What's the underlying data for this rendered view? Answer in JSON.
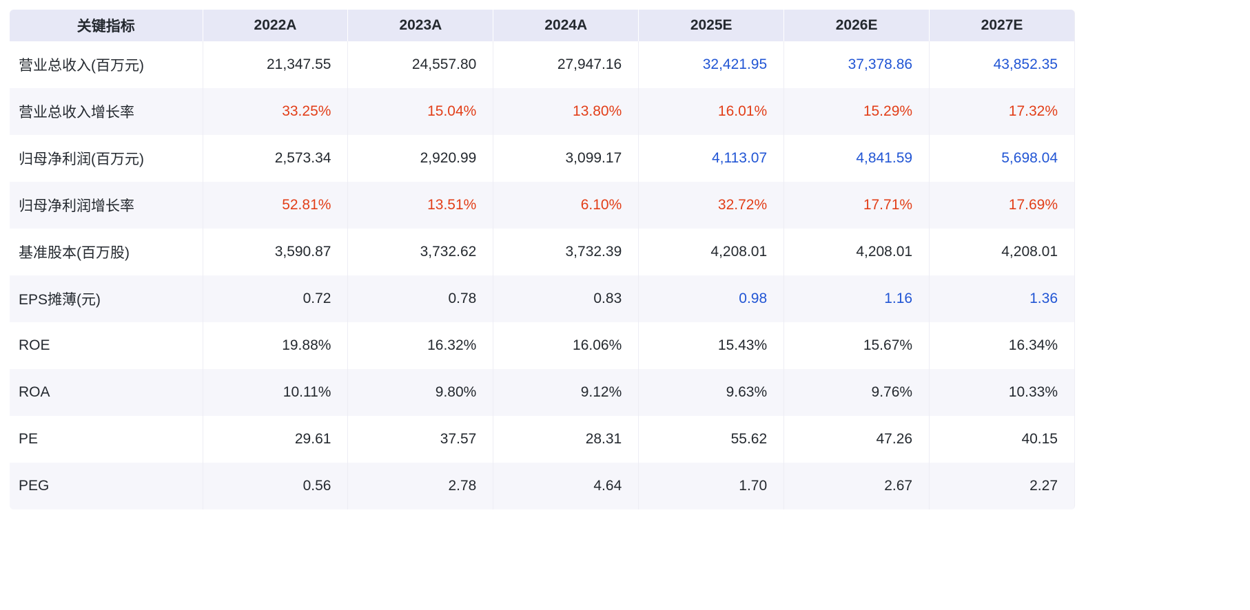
{
  "palette": {
    "text_default": "#24292f",
    "forecast_blue": "#2155d4",
    "growth_red": "#e23e18",
    "header_bg": "#e7e8f6",
    "stripe_bg": "#f6f6fb"
  },
  "chart_data": {
    "type": "table",
    "title": "关键指标",
    "columns": [
      "关键指标",
      "2022A",
      "2023A",
      "2024A",
      "2025E",
      "2026E",
      "2027E"
    ],
    "rows": [
      {
        "label": "营业总收入(百万元)",
        "values": [
          "21,347.55",
          "24,557.80",
          "27,947.16",
          "32,421.95",
          "37,378.86",
          "43,852.35"
        ],
        "value_colors": [
          "default",
          "default",
          "default",
          "blue",
          "blue",
          "blue"
        ]
      },
      {
        "label": "营业总收入增长率",
        "values": [
          "33.25%",
          "15.04%",
          "13.80%",
          "16.01%",
          "15.29%",
          "17.32%"
        ],
        "value_colors": [
          "red",
          "red",
          "red",
          "red",
          "red",
          "red"
        ]
      },
      {
        "label": "归母净利润(百万元)",
        "values": [
          "2,573.34",
          "2,920.99",
          "3,099.17",
          "4,113.07",
          "4,841.59",
          "5,698.04"
        ],
        "value_colors": [
          "default",
          "default",
          "default",
          "blue",
          "blue",
          "blue"
        ]
      },
      {
        "label": "归母净利润增长率",
        "values": [
          "52.81%",
          "13.51%",
          "6.10%",
          "32.72%",
          "17.71%",
          "17.69%"
        ],
        "value_colors": [
          "red",
          "red",
          "red",
          "red",
          "red",
          "red"
        ]
      },
      {
        "label": "基准股本(百万股)",
        "values": [
          "3,590.87",
          "3,732.62",
          "3,732.39",
          "4,208.01",
          "4,208.01",
          "4,208.01"
        ],
        "value_colors": [
          "default",
          "default",
          "default",
          "default",
          "default",
          "default"
        ]
      },
      {
        "label": "EPS摊薄(元)",
        "values": [
          "0.72",
          "0.78",
          "0.83",
          "0.98",
          "1.16",
          "1.36"
        ],
        "value_colors": [
          "default",
          "default",
          "default",
          "blue",
          "blue",
          "blue"
        ]
      },
      {
        "label": "ROE",
        "values": [
          "19.88%",
          "16.32%",
          "16.06%",
          "15.43%",
          "15.67%",
          "16.34%"
        ],
        "value_colors": [
          "default",
          "default",
          "default",
          "default",
          "default",
          "default"
        ]
      },
      {
        "label": "ROA",
        "values": [
          "10.11%",
          "9.80%",
          "9.12%",
          "9.63%",
          "9.76%",
          "10.33%"
        ],
        "value_colors": [
          "default",
          "default",
          "default",
          "default",
          "default",
          "default"
        ]
      },
      {
        "label": "PE",
        "values": [
          "29.61",
          "37.57",
          "28.31",
          "55.62",
          "47.26",
          "40.15"
        ],
        "value_colors": [
          "default",
          "default",
          "default",
          "default",
          "default",
          "default"
        ]
      },
      {
        "label": "PEG",
        "values": [
          "0.56",
          "2.78",
          "4.64",
          "1.70",
          "2.67",
          "2.27"
        ],
        "value_colors": [
          "default",
          "default",
          "default",
          "default",
          "default",
          "default"
        ]
      }
    ]
  }
}
